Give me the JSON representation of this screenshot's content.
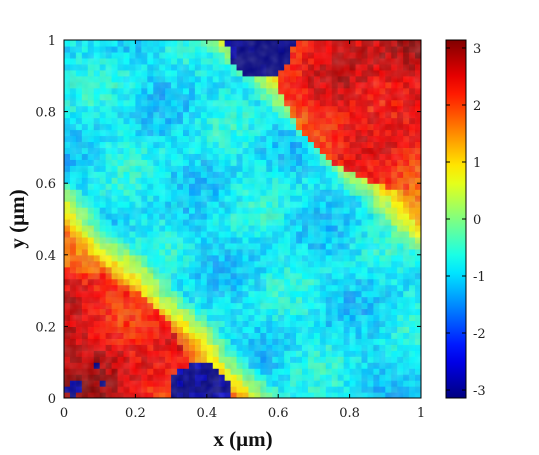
{
  "chart_data": {
    "type": "heatmap",
    "title": "",
    "xlabel": "x (μm)",
    "ylabel": "y (μm)",
    "xlim": [
      0,
      1
    ],
    "ylim": [
      0,
      1
    ],
    "x_ticks": [
      "0",
      "0.2",
      "0.4",
      "0.6",
      "0.8",
      "1"
    ],
    "y_ticks": [
      "0",
      "0.2",
      "0.4",
      "0.6",
      "0.8",
      "1"
    ],
    "colorbar": {
      "range": [
        -3.14,
        3.14
      ],
      "ticks": [
        "-3",
        "-2",
        "-1",
        "0",
        "1",
        "2",
        "3"
      ],
      "colormap": "jet"
    },
    "grid": false,
    "description_regions": [
      {
        "region": "center band (diagonal from lower-right to upper-left)",
        "approx_value": -1
      },
      {
        "region": "upper-left and lower-right edges",
        "approx_value": 1.8
      },
      {
        "region": "top-right corner",
        "approx_value": 3
      },
      {
        "region": "bottom-left corner",
        "approx_value": 3
      },
      {
        "region": "top-center domain near x=0.5,y=0.95",
        "approx_value": -3
      },
      {
        "region": "bottom-center domain near x=0.35,y=0.05",
        "approx_value": -3
      }
    ]
  }
}
